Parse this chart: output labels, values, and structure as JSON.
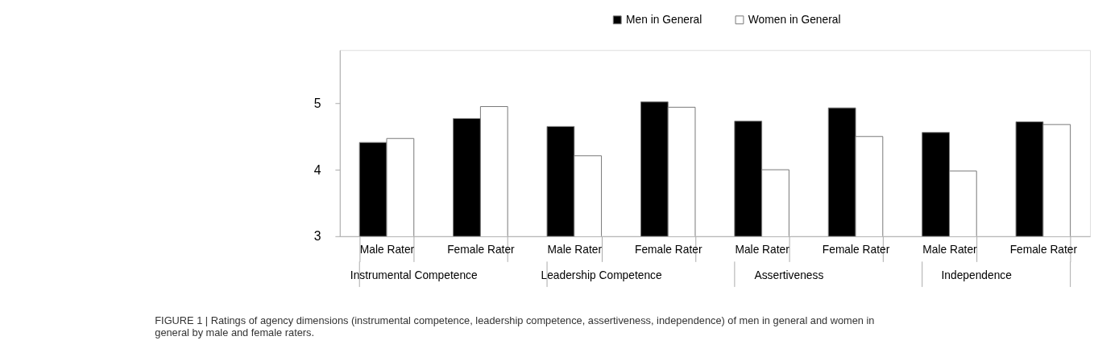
{
  "chart_data": {
    "type": "bar",
    "categories": [
      "Male Rater",
      "Female Rater",
      "Male Rater",
      "Female Rater",
      "Male Rater",
      "Female Rater",
      "Male Rater",
      "Female Rater"
    ],
    "series": [
      {
        "name": "Men in General",
        "color": "#000000",
        "values": [
          4.41,
          4.77,
          4.65,
          5.02,
          4.73,
          4.93,
          4.56,
          4.72
        ]
      },
      {
        "name": "Women in General",
        "color": "#ffffff",
        "values": [
          4.47,
          4.95,
          4.21,
          4.94,
          4.0,
          4.5,
          3.98,
          4.68
        ]
      }
    ],
    "ylim": [
      3,
      5.8
    ],
    "yticks": [
      3,
      4,
      5
    ],
    "grid": false,
    "legend": "top",
    "annotations": [
      "Instrumental Competence",
      "Leadership Competence",
      "Assertiveness",
      "Independence",
      "FIGURE 1 | Ratings of agency dimensions (instrumental competence, leadership competence, assertiveness, independence) of men in general and women in general by male and female raters."
    ]
  }
}
